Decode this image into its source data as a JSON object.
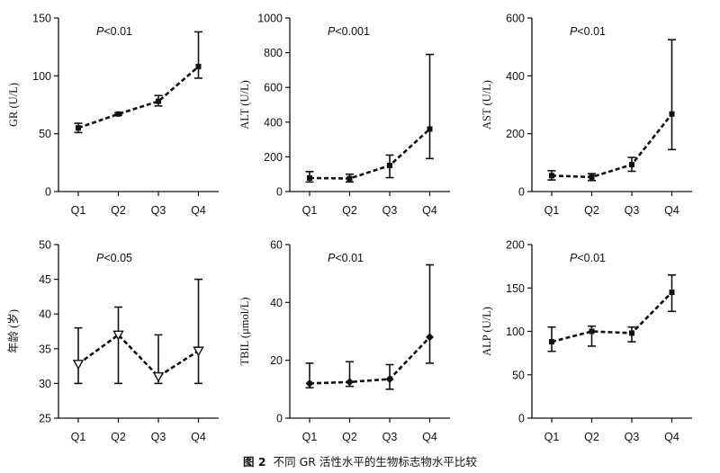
{
  "figure": {
    "label": "图 2",
    "caption": "不同 GR 活性水平的生物标志物水平比较"
  },
  "chart_data": [
    {
      "type": "line",
      "ylabel": "GR (U/L)",
      "annotation": {
        "italic": "P",
        "text": "<0.01"
      },
      "categories": [
        "Q1",
        "Q2",
        "Q3",
        "Q4"
      ],
      "ylim": [
        0,
        150
      ],
      "yticks": [
        0,
        50,
        100,
        150
      ],
      "marker": "square",
      "series": [
        {
          "values": [
            55,
            67,
            78,
            108
          ],
          "err_low": [
            51,
            66,
            74,
            98
          ],
          "err_high": [
            59,
            68,
            83,
            138
          ]
        }
      ]
    },
    {
      "type": "line",
      "ylabel": "ALT (U/L)",
      "annotation": {
        "italic": "P",
        "text": "<0.001"
      },
      "categories": [
        "Q1",
        "Q2",
        "Q3",
        "Q4"
      ],
      "ylim": [
        0,
        1000
      ],
      "yticks": [
        0,
        200,
        400,
        600,
        800,
        1000
      ],
      "marker": "square",
      "series": [
        {
          "values": [
            78,
            75,
            150,
            360
          ],
          "err_low": [
            55,
            55,
            80,
            190
          ],
          "err_high": [
            115,
            100,
            210,
            790
          ]
        }
      ]
    },
    {
      "type": "line",
      "ylabel": "AST (U/L)",
      "annotation": {
        "italic": "P",
        "text": "<0.01"
      },
      "categories": [
        "Q1",
        "Q2",
        "Q3",
        "Q4"
      ],
      "ylim": [
        0,
        600
      ],
      "yticks": [
        0,
        200,
        400,
        600
      ],
      "marker": "square",
      "series": [
        {
          "values": [
            55,
            50,
            93,
            268
          ],
          "err_low": [
            40,
            38,
            70,
            145
          ],
          "err_high": [
            72,
            62,
            118,
            525
          ]
        }
      ]
    },
    {
      "type": "line",
      "ylabel": "年龄 (岁)",
      "annotation": {
        "italic": "P",
        "text": "<0.05"
      },
      "categories": [
        "Q1",
        "Q2",
        "Q3",
        "Q4"
      ],
      "ylim": [
        25,
        50
      ],
      "yticks": [
        25,
        30,
        35,
        40,
        45,
        50
      ],
      "marker": "triangle-down",
      "series": [
        {
          "values": [
            32.8,
            37,
            31,
            34.7
          ],
          "err_low": [
            30,
            30,
            30,
            30
          ],
          "err_high": [
            38,
            41,
            37,
            45
          ]
        }
      ]
    },
    {
      "type": "line",
      "ylabel": "TBIL (μmol/L)",
      "annotation": {
        "italic": "P",
        "text": "<0.01"
      },
      "categories": [
        "Q1",
        "Q2",
        "Q3",
        "Q4"
      ],
      "ylim": [
        0,
        60
      ],
      "yticks": [
        0,
        20,
        40,
        60
      ],
      "marker": "diamond",
      "series": [
        {
          "values": [
            12,
            12.5,
            13.5,
            28
          ],
          "err_low": [
            10.5,
            11,
            10,
            19
          ],
          "err_high": [
            19,
            19.5,
            18.5,
            53
          ]
        }
      ]
    },
    {
      "type": "line",
      "ylabel": "ALP (U/L)",
      "annotation": {
        "italic": "P",
        "text": "<0.01"
      },
      "categories": [
        "Q1",
        "Q2",
        "Q3",
        "Q4"
      ],
      "ylim": [
        0,
        200
      ],
      "yticks": [
        0,
        50,
        100,
        150,
        200
      ],
      "marker": "square",
      "series": [
        {
          "values": [
            88,
            100,
            98,
            145
          ],
          "err_low": [
            77,
            83,
            88,
            123
          ],
          "err_high": [
            105,
            106,
            105,
            165
          ]
        }
      ]
    }
  ]
}
